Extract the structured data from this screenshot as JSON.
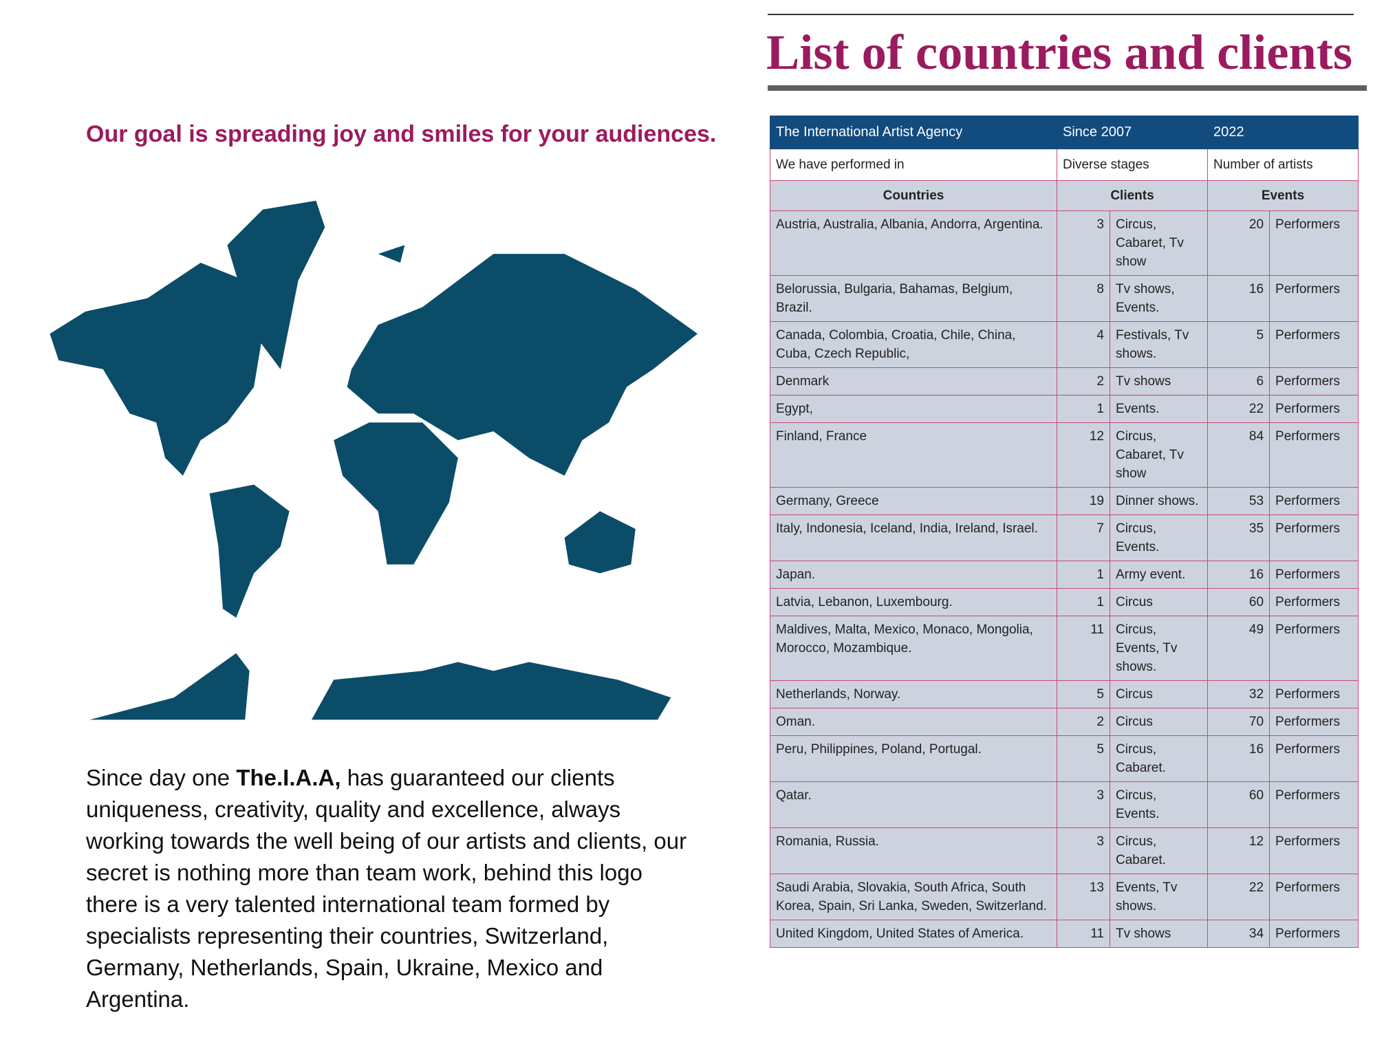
{
  "header": {
    "title": "List of countries and clients"
  },
  "tagline": "Our goal is spreading joy and smiles for your audiences.",
  "paragraph": {
    "before": "Since day one",
    "bold": "The.I.A.A,",
    "after": "has guaranteed our clients uniqueness, creativity, quality and excellence, always working towards the well being of our artists and clients, our secret is nothing more than team work, behind this logo there is a very talented international team formed by specialists representing their countries, Switzerland, Germany, Netherlands, Spain, Ukraine, Mexico and Argentina."
  },
  "table": {
    "header": [
      [
        "The International Artist Agency",
        "Since 2007",
        "2022"
      ],
      [
        "We have performed in",
        "Diverse stages",
        "Number of artists"
      ],
      [
        "Countries",
        "Clients",
        "Events"
      ]
    ],
    "rows": [
      [
        "Austria, Australia, Albania, Andorra, Argentina.",
        3,
        "Circus, Cabaret, Tv show",
        20,
        "Performers"
      ],
      [
        "Belorussia, Bulgaria, Bahamas, Belgium, Brazil.",
        8,
        "Tv shows, Events.",
        16,
        "Performers"
      ],
      [
        "Canada, Colombia, Croatia, Chile, China, Cuba, Czech Republic,",
        4,
        "Festivals, Tv shows.",
        5,
        "Performers"
      ],
      [
        "Denmark",
        2,
        "Tv shows",
        6,
        "Performers"
      ],
      [
        "Egypt,",
        1,
        "Events.",
        22,
        "Performers"
      ],
      [
        "Finland, France",
        12,
        "Circus, Cabaret, Tv show",
        84,
        "Performers"
      ],
      [
        "Germany, Greece",
        19,
        "Dinner shows.",
        53,
        "Performers"
      ],
      [
        "Italy, Indonesia, Iceland, India, Ireland, Israel.",
        7,
        "Circus, Events.",
        35,
        "Performers"
      ],
      [
        "Japan.",
        1,
        "Army event.",
        16,
        "Performers"
      ],
      [
        "Latvia, Lebanon, Luxembourg.",
        1,
        "Circus",
        60,
        "Performers"
      ],
      [
        "Maldives, Malta, Mexico, Monaco, Mongolia, Morocco, Mozambique.",
        11,
        "Circus, Events, Tv shows.",
        49,
        "Performers"
      ],
      [
        "Netherlands, Norway.",
        5,
        "Circus",
        32,
        "Performers"
      ],
      [
        "Oman.",
        2,
        "Circus",
        70,
        "Performers"
      ],
      [
        "Peru, Philippines, Poland, Portugal.",
        5,
        "Circus, Cabaret.",
        16,
        "Performers"
      ],
      [
        "Qatar.",
        3,
        "Circus, Events.",
        60,
        "Performers"
      ],
      [
        "Romania, Russia.",
        3,
        "Circus, Cabaret.",
        12,
        "Performers"
      ],
      [
        "Saudi Arabia, Slovakia, South Africa, South Korea, Spain, Sri Lanka, Sweden, Switzerland.",
        13,
        "Events, Tv shows.",
        22,
        "Performers"
      ],
      [
        "United Kingdom, United States of America.",
        11,
        "Tv shows",
        34,
        "Performers"
      ]
    ]
  }
}
